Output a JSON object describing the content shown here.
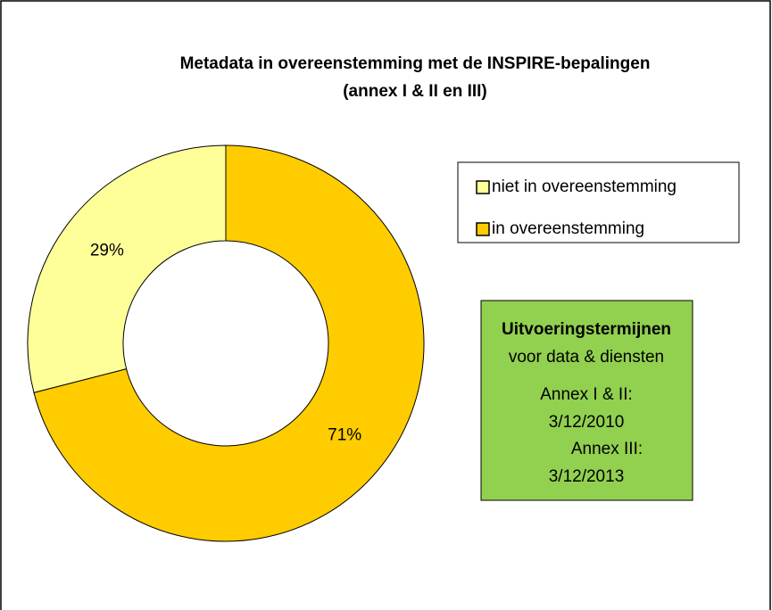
{
  "chart_data": {
    "type": "pie",
    "title": "Metadata in overeenstemming met de INSPIRE-bepalingen",
    "subtitle": "(annex I & II en III)",
    "categories": [
      "niet in overeenstemming",
      "in overeenstemming"
    ],
    "values": [
      29,
      71
    ],
    "value_labels": [
      "29%",
      "71%"
    ],
    "colors": [
      "#ffff99",
      "#ffcc00"
    ],
    "donut": true,
    "legend": "right",
    "annotation": {
      "title": "Uitvoeringstermijnen",
      "lines": [
        "voor data & diensten",
        "Annex I & II:",
        "3/12/2010",
        "Annex III:",
        "3/12/2013"
      ]
    }
  }
}
